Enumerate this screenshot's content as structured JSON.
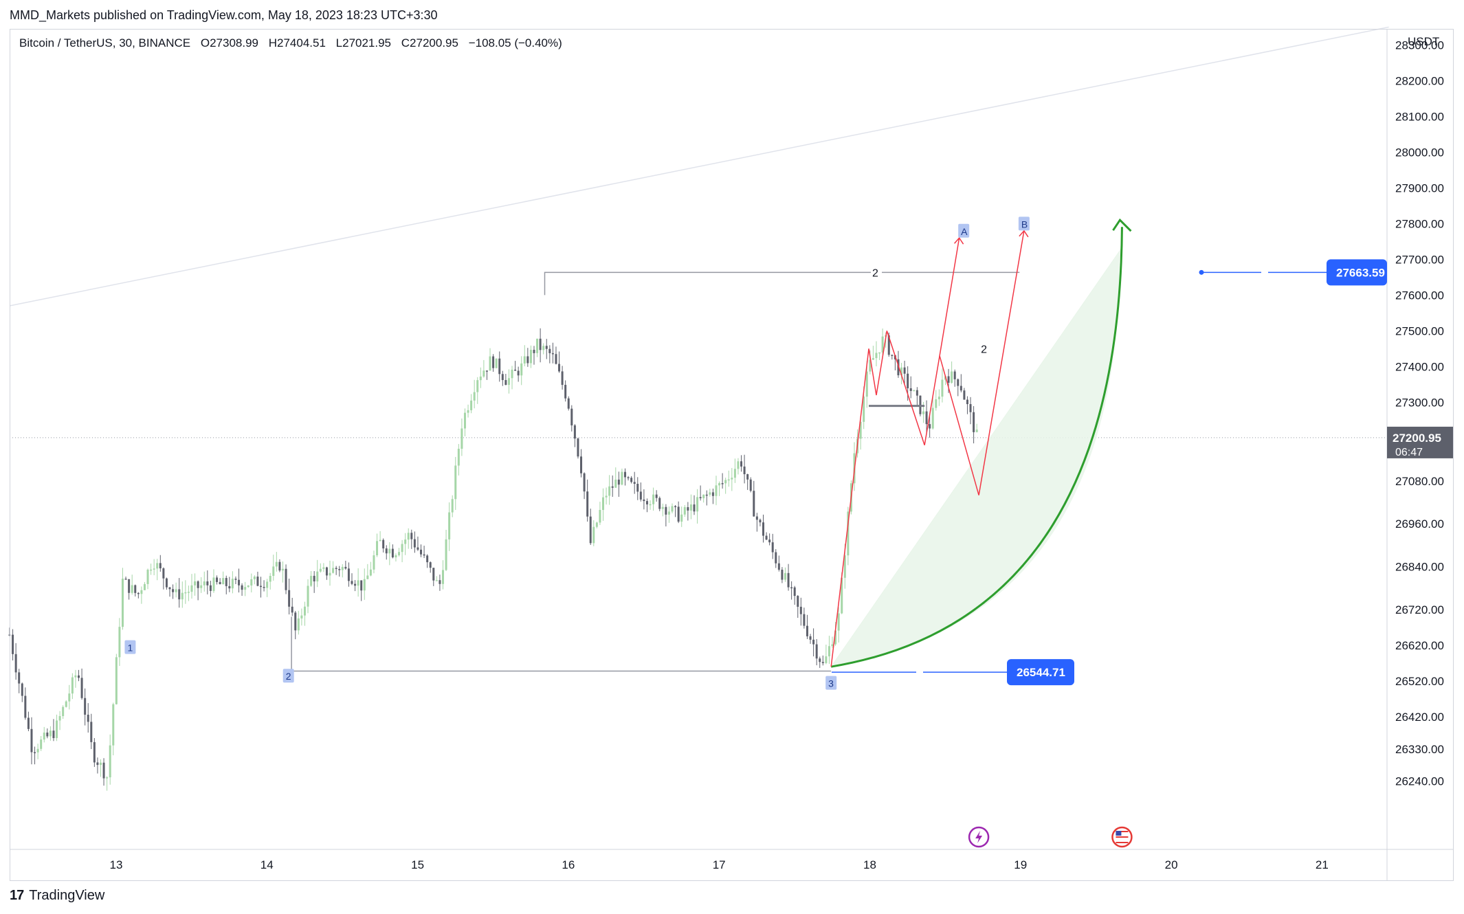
{
  "publisher_line": "MMD_Markets published on TradingView.com, May 18, 2023 18:23 UTC+3:30",
  "symbol": {
    "name": "Bitcoin / TetherUS, 30, BINANCE",
    "open": "O27308.99",
    "high": "H27404.51",
    "low": "L27021.95",
    "close": "C27200.95",
    "change": "−108.05 (−0.40%)"
  },
  "footer": {
    "brand": "TradingView",
    "logo_text": "17"
  },
  "colors": {
    "up": "#a5d6a7",
    "down": "#5d606b",
    "accent_blue": "#2962ff",
    "projection_red": "#f23645",
    "curve_green": "#2e9e2e",
    "fill_green": "#e8f5e9",
    "wave_label_bg": "#b2c5f2",
    "last_price_bg": "#5d606b"
  },
  "chart_data": {
    "type": "candlestick",
    "price_axis": {
      "unit": "USDT",
      "ticks": [
        "28300.00",
        "28200.00",
        "28100.00",
        "28000.00",
        "27900.00",
        "27800.00",
        "27700.00",
        "27600.00",
        "27500.00",
        "27400.00",
        "27300.00",
        "27080.00",
        "26960.00",
        "26840.00",
        "26720.00",
        "26620.00",
        "26520.00",
        "26420.00",
        "26330.00",
        "26240.00"
      ],
      "range": [
        26180,
        28360
      ]
    },
    "time_axis": {
      "ticks": [
        "13",
        "14",
        "15",
        "16",
        "17",
        "18",
        "19",
        "20",
        "21"
      ]
    },
    "last_price": {
      "value": "27200.95",
      "countdown": "06:47"
    },
    "price_labels": [
      {
        "value": "27663.59",
        "color": "#2962ff"
      },
      {
        "value": "26544.71",
        "color": "#2962ff"
      }
    ],
    "wave_labels": [
      {
        "text": "1",
        "at_day": 13.1,
        "price": 26615
      },
      {
        "text": "2",
        "at_day": 14.15,
        "price": 26535
      },
      {
        "text": "3",
        "at_day": 17.75,
        "price": 26515
      },
      {
        "text": "2",
        "at_day": 18.0,
        "price": 27663.59
      },
      {
        "text": "2",
        "at_day": 18.73,
        "price": 27450
      },
      {
        "text": "A",
        "at_day": 18.63,
        "price": 27780
      },
      {
        "text": "B",
        "at_day": 19.03,
        "price": 27800
      }
    ],
    "candles_anchor_path": [
      [
        12.3,
        26650
      ],
      [
        12.45,
        26330
      ],
      [
        12.6,
        26380
      ],
      [
        12.75,
        26550
      ],
      [
        12.85,
        26320
      ],
      [
        12.95,
        26250
      ],
      [
        13.05,
        26800
      ],
      [
        13.15,
        26760
      ],
      [
        13.25,
        26860
      ],
      [
        13.4,
        26760
      ],
      [
        13.6,
        26790
      ],
      [
        13.8,
        26790
      ],
      [
        14.0,
        26800
      ],
      [
        14.1,
        26850
      ],
      [
        14.2,
        26650
      ],
      [
        14.3,
        26810
      ],
      [
        14.5,
        26840
      ],
      [
        14.65,
        26780
      ],
      [
        14.75,
        26910
      ],
      [
        14.85,
        26880
      ],
      [
        14.95,
        26930
      ],
      [
        15.05,
        26860
      ],
      [
        15.15,
        26780
      ],
      [
        15.2,
        26920
      ],
      [
        15.3,
        27240
      ],
      [
        15.4,
        27370
      ],
      [
        15.5,
        27420
      ],
      [
        15.6,
        27360
      ],
      [
        15.7,
        27400
      ],
      [
        15.8,
        27460
      ],
      [
        15.9,
        27430
      ],
      [
        16.0,
        27310
      ],
      [
        16.1,
        27100
      ],
      [
        16.15,
        26900
      ],
      [
        16.25,
        27040
      ],
      [
        16.35,
        27090
      ],
      [
        16.5,
        27040
      ],
      [
        16.6,
        27020
      ],
      [
        16.75,
        26980
      ],
      [
        16.9,
        27030
      ],
      [
        17.05,
        27080
      ],
      [
        17.15,
        27140
      ],
      [
        17.25,
        26980
      ],
      [
        17.35,
        26890
      ],
      [
        17.45,
        26800
      ],
      [
        17.55,
        26700
      ],
      [
        17.7,
        26560
      ],
      [
        17.8,
        26700
      ],
      [
        17.9,
        27150
      ],
      [
        18.0,
        27400
      ],
      [
        18.1,
        27480
      ],
      [
        18.2,
        27390
      ],
      [
        18.3,
        27320
      ],
      [
        18.4,
        27230
      ],
      [
        18.5,
        27380
      ],
      [
        18.6,
        27360
      ],
      [
        18.72,
        27200
      ]
    ],
    "projections": {
      "red_zigzag_1": [
        [
          17.75,
          26560
        ],
        [
          18.0,
          27450
        ],
        [
          18.05,
          27320
        ],
        [
          18.12,
          27500
        ],
        [
          18.37,
          27180
        ],
        [
          18.47,
          27430
        ],
        [
          18.6,
          27760
        ]
      ],
      "red_zigzag_2": [
        [
          18.47,
          27430
        ],
        [
          18.73,
          27040
        ],
        [
          19.03,
          27780
        ]
      ],
      "green_curve": {
        "start": [
          17.75,
          26560
        ],
        "end": [
          19.68,
          27810
        ]
      },
      "diagonal_line": {
        "from": [
          12.3,
          27570
        ],
        "to": [
          21.45,
          28350
        ]
      },
      "horizontal_top": {
        "from": [
          15.85,
          27663.59
        ],
        "to": [
          21.45,
          27663.59
        ]
      },
      "horizontal_bottom": {
        "from": [
          14.17,
          26548
        ],
        "to": [
          17.75,
          26548
        ]
      }
    }
  }
}
